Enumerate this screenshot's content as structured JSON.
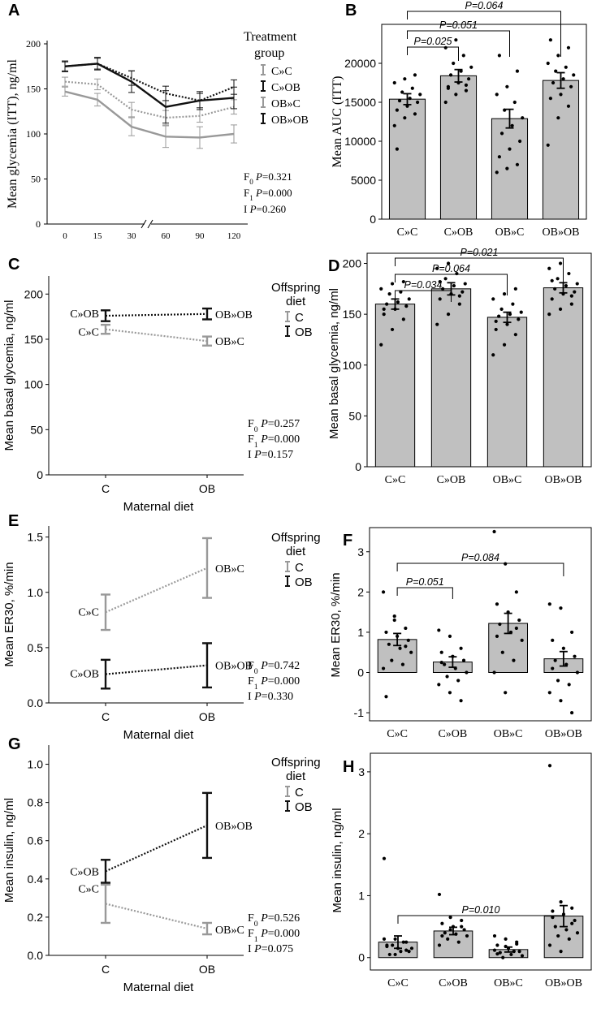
{
  "colors": {
    "c_offspring": "#999999",
    "ob_offspring": "#111111",
    "bar_fill": "#c0c0c0"
  },
  "chart_data": [
    {
      "panel": "A",
      "type": "line",
      "ylabel": "Mean glycemia (ITT), ng/ml",
      "x": [
        0,
        15,
        30,
        60,
        90,
        120
      ],
      "xticks": [
        "0",
        "15",
        "30",
        "60",
        "90",
        "120"
      ],
      "ylim": [
        0,
        200
      ],
      "yticks": [
        0,
        50,
        100,
        150,
        200
      ],
      "legend_title": [
        "Treatment",
        "group"
      ],
      "series": [
        {
          "name": "C»C",
          "style": "dotted-gray",
          "values": [
            158,
            155,
            127,
            118,
            120,
            130
          ],
          "errors": [
            5,
            6,
            8,
            8,
            7,
            8
          ]
        },
        {
          "name": "C»OB",
          "style": "dotted-black",
          "values": [
            175,
            178,
            162,
            145,
            137,
            152
          ],
          "errors": [
            5,
            6,
            8,
            8,
            8,
            8
          ]
        },
        {
          "name": "OB»C",
          "style": "solid-gray",
          "values": [
            147,
            138,
            108,
            97,
            96,
            100
          ],
          "errors": [
            5,
            7,
            10,
            12,
            12,
            10
          ]
        },
        {
          "name": "OB»OB",
          "style": "solid-black",
          "values": [
            175,
            178,
            158,
            130,
            137,
            140
          ],
          "errors": [
            6,
            7,
            12,
            18,
            10,
            12
          ]
        }
      ],
      "stats": [
        {
          "label": "F",
          "sub": "0",
          "p": "0.321"
        },
        {
          "label": "F",
          "sub": "1",
          "p": "0.000"
        },
        {
          "label": "I",
          "sub": "",
          "p": "0.260"
        }
      ]
    },
    {
      "panel": "B",
      "type": "bar",
      "ylabel": "Mean AUC (ITT)",
      "categories": [
        "C»C",
        "C»OB",
        "OB»C",
        "OB»OB"
      ],
      "values": [
        15400,
        18400,
        12900,
        17800
      ],
      "errors": [
        700,
        800,
        1200,
        1000
      ],
      "ylim": [
        0,
        25000
      ],
      "yticks": [
        0,
        5000,
        10000,
        15000,
        20000
      ],
      "points": [
        [
          12000,
          13000,
          13500,
          14000,
          14500,
          15000,
          15200,
          15500,
          16000,
          16300,
          16800,
          17500,
          18000,
          18500,
          9000
        ],
        [
          15000,
          16000,
          16500,
          17000,
          17500,
          18000,
          18500,
          19000,
          19500,
          20000,
          21000,
          22000,
          23000,
          17200,
          16800
        ],
        [
          6000,
          6500,
          7000,
          8000,
          9000,
          10000,
          11000,
          12000,
          13000,
          14000,
          15000,
          16000,
          17000,
          19000,
          21000
        ],
        [
          9500,
          13000,
          14500,
          15500,
          16000,
          17000,
          17500,
          18000,
          18500,
          19000,
          19500,
          20000,
          21000,
          22000,
          23000
        ]
      ],
      "comparisons": [
        {
          "from": 0,
          "to": 1,
          "label": "P=0.025"
        },
        {
          "from": 0,
          "to": 2,
          "label": "P=0.051"
        },
        {
          "from": 0,
          "to": 3,
          "label": "P=0.064"
        }
      ]
    },
    {
      "panel": "C",
      "type": "line",
      "ylabel": "Mean basal glycemia, ng/ml",
      "xlabel": "Maternal diet",
      "categories": [
        "C",
        "OB"
      ],
      "ylim": [
        0,
        220
      ],
      "yticks": [
        0,
        50,
        100,
        150,
        200
      ],
      "legend_title": [
        "Offspring",
        "diet"
      ],
      "legend": [
        "C",
        "OB"
      ],
      "series": [
        {
          "name": "C",
          "labels": [
            "C»C",
            "OB»C"
          ],
          "values": [
            161,
            148
          ],
          "errors": [
            5,
            5
          ]
        },
        {
          "name": "OB",
          "labels": [
            "C»OB",
            "OB»OB"
          ],
          "values": [
            176,
            178
          ],
          "errors": [
            6,
            6
          ]
        }
      ],
      "stats": [
        {
          "label": "F",
          "sub": "0",
          "p": "0.257"
        },
        {
          "label": "F",
          "sub": "1",
          "p": "0.000"
        },
        {
          "label": "I",
          "sub": "",
          "p": "0.157"
        }
      ]
    },
    {
      "panel": "D",
      "type": "bar",
      "ylabel": "Mean basal glycemia, ng/ml",
      "categories": [
        "C»C",
        "C»OB",
        "OB»C",
        "OB»OB"
      ],
      "values": [
        160,
        175,
        147,
        176
      ],
      "errors": [
        5,
        6,
        5,
        5
      ],
      "ylim": [
        0,
        210
      ],
      "yticks": [
        0,
        50,
        100,
        150,
        200
      ],
      "points": [
        [
          120,
          135,
          145,
          150,
          155,
          158,
          160,
          162,
          165,
          170,
          172,
          175,
          180,
          182,
          155
        ],
        [
          140,
          150,
          160,
          165,
          170,
          172,
          175,
          178,
          180,
          185,
          190,
          195,
          200,
          168,
          182
        ],
        [
          110,
          120,
          130,
          135,
          140,
          145,
          148,
          150,
          152,
          155,
          160,
          165,
          170,
          175,
          143
        ],
        [
          150,
          155,
          160,
          165,
          170,
          172,
          175,
          178,
          180,
          185,
          190,
          195,
          200,
          168,
          183
        ]
      ],
      "comparisons": [
        {
          "from": 0,
          "to": 1,
          "label": "P=0.034"
        },
        {
          "from": 0,
          "to": 2,
          "label": "P=0.064"
        },
        {
          "from": 0,
          "to": 3,
          "label": "P=0.021"
        }
      ]
    },
    {
      "panel": "E",
      "type": "line",
      "ylabel": "Mean ER30, %/min",
      "xlabel": "Maternal diet",
      "categories": [
        "C",
        "OB"
      ],
      "ylim": [
        0,
        1.6
      ],
      "yticks": [
        0.0,
        0.5,
        1.0,
        1.5
      ],
      "yticklabels": [
        "0.0",
        "0.5",
        "1.0",
        "1.5"
      ],
      "legend_title": [
        "Offspring",
        "diet"
      ],
      "legend": [
        "C",
        "OB"
      ],
      "series": [
        {
          "name": "C",
          "labels": [
            "C»C",
            "OB»C"
          ],
          "values": [
            0.82,
            1.22
          ],
          "errors": [
            0.16,
            0.27
          ]
        },
        {
          "name": "OB",
          "labels": [
            "C»OB",
            "OB»OB"
          ],
          "values": [
            0.26,
            0.34
          ],
          "errors": [
            0.13,
            0.2
          ]
        }
      ],
      "stats": [
        {
          "label": "F",
          "sub": "0",
          "p": "0.742"
        },
        {
          "label": "F",
          "sub": "1",
          "p": "0.000"
        },
        {
          "label": "I",
          "sub": "",
          "p": "0.330"
        }
      ]
    },
    {
      "panel": "F",
      "type": "bar",
      "ylabel": "Mean ER30, %/min",
      "categories": [
        "C»C",
        "C»OB",
        "OB»C",
        "OB»OB"
      ],
      "values": [
        0.82,
        0.26,
        1.22,
        0.34
      ],
      "errors": [
        0.15,
        0.13,
        0.25,
        0.18
      ],
      "ylim": [
        -1.2,
        3.6
      ],
      "yticks": [
        -1,
        0,
        1,
        2,
        3
      ],
      "points": [
        [
          2.0,
          1.3,
          1.1,
          1.0,
          0.9,
          0.8,
          0.7,
          0.6,
          0.5,
          0.3,
          0.2,
          0.1,
          1.4,
          0.65,
          -0.6
        ],
        [
          1.05,
          0.9,
          0.6,
          0.5,
          0.4,
          0.3,
          0.2,
          0.1,
          0.0,
          -0.1,
          -0.2,
          -0.3,
          -0.5,
          -0.7,
          0.25
        ],
        [
          3.5,
          2.7,
          2.0,
          1.7,
          1.5,
          1.3,
          1.2,
          1.0,
          0.8,
          0.5,
          0.3,
          0.0,
          -0.5,
          1.1,
          0.9
        ],
        [
          1.7,
          1.6,
          1.0,
          0.8,
          0.6,
          0.4,
          0.3,
          0.2,
          0.0,
          -0.2,
          -0.3,
          -0.5,
          -0.7,
          -1.0,
          0.1
        ]
      ],
      "comparisons": [
        {
          "from": 0,
          "to": 1,
          "label": "P=0.051"
        },
        {
          "from": 0,
          "to": 3,
          "label": "P=0.084"
        }
      ]
    },
    {
      "panel": "G",
      "type": "line",
      "ylabel": "Mean insulin, ng/ml",
      "xlabel": "Maternal diet",
      "categories": [
        "C",
        "OB"
      ],
      "ylim": [
        0,
        1.1
      ],
      "yticks": [
        0.0,
        0.2,
        0.4,
        0.6,
        0.8,
        1.0
      ],
      "yticklabels": [
        "0.0",
        "0.2",
        "0.4",
        "0.6",
        "0.8",
        "1.0"
      ],
      "legend_title": [
        "Offspring",
        "diet"
      ],
      "legend": [
        "C",
        "OB"
      ],
      "series": [
        {
          "name": "C",
          "labels": [
            "C»C",
            "OB»C"
          ],
          "values": [
            0.27,
            0.14
          ],
          "errors": [
            0.1,
            0.03
          ]
        },
        {
          "name": "OB",
          "labels": [
            "C»OB",
            "OB»OB"
          ],
          "values": [
            0.44,
            0.68
          ],
          "errors": [
            0.06,
            0.17
          ]
        }
      ],
      "stats": [
        {
          "label": "F",
          "sub": "0",
          "p": "0.526"
        },
        {
          "label": "F",
          "sub": "1",
          "p": "0.000"
        },
        {
          "label": "I",
          "sub": "",
          "p": "0.075"
        }
      ]
    },
    {
      "panel": "H",
      "type": "bar",
      "ylabel": "Mean insulin, ng/ml",
      "categories": [
        "C»C",
        "C»OB",
        "OB»C",
        "OB»OB"
      ],
      "values": [
        0.25,
        0.43,
        0.13,
        0.67
      ],
      "errors": [
        0.1,
        0.06,
        0.04,
        0.17
      ],
      "ylim": [
        -0.2,
        3.3
      ],
      "yticks": [
        0,
        1,
        2,
        3
      ],
      "points": [
        [
          1.6,
          0.3,
          0.25,
          0.2,
          0.15,
          0.1,
          0.05,
          0.1,
          0.15,
          0.2,
          0.25,
          0.3,
          0.05,
          0.12,
          0.18
        ],
        [
          1.02,
          0.65,
          0.6,
          0.55,
          0.5,
          0.45,
          0.4,
          0.38,
          0.35,
          0.3,
          0.25,
          0.2,
          0.45,
          0.5,
          0.35
        ],
        [
          0.35,
          0.3,
          0.25,
          0.2,
          0.15,
          0.1,
          0.08,
          0.05,
          0.03,
          0.0,
          0.1,
          0.12,
          0.18,
          0.22,
          0.06
        ],
        [
          3.1,
          0.9,
          0.8,
          0.75,
          0.7,
          0.6,
          0.5,
          0.45,
          0.4,
          0.35,
          0.3,
          0.2,
          0.1,
          0.55,
          0.65
        ]
      ],
      "comparisons": [
        {
          "from": 0,
          "to": 3,
          "label": "P=0.010"
        }
      ]
    }
  ]
}
